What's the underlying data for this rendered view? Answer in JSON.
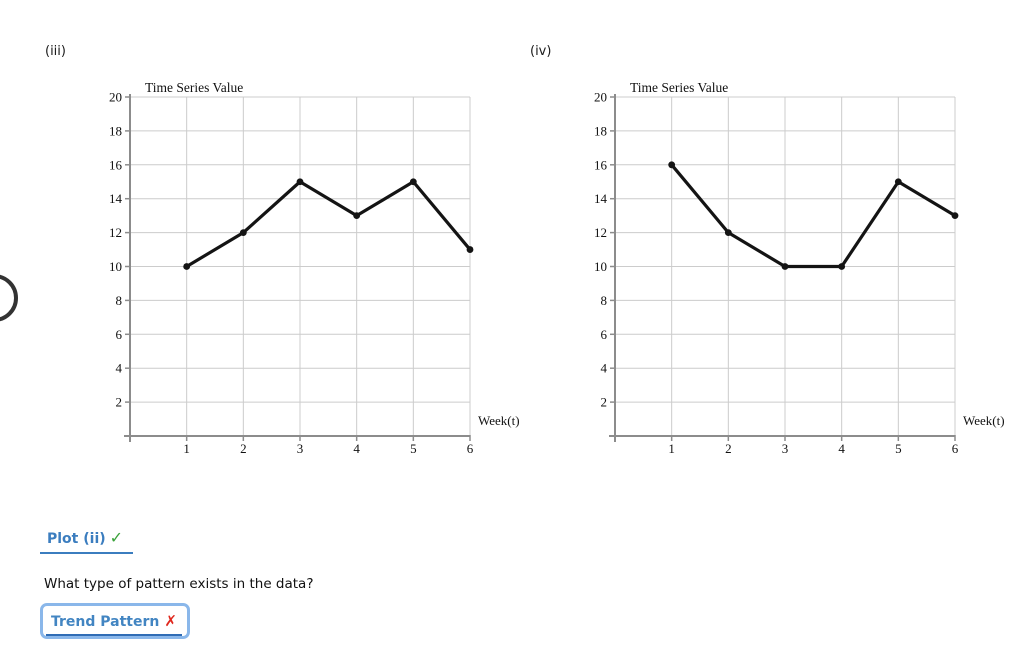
{
  "figures": [
    {
      "label": "(iii)"
    },
    {
      "label": "(iv)"
    }
  ],
  "chart_data": [
    {
      "type": "line",
      "title": "Time Series Value",
      "xlabel": "Week(t)",
      "x": [
        1,
        2,
        3,
        4,
        5,
        6
      ],
      "values": [
        10,
        12,
        15,
        13,
        15,
        11
      ],
      "ylim": [
        0,
        20
      ],
      "xlim": [
        0,
        6
      ],
      "yticks": [
        2,
        4,
        6,
        8,
        10,
        12,
        14,
        16,
        18,
        20
      ],
      "xticks": [
        1,
        2,
        3,
        4,
        5,
        6
      ],
      "grid": true,
      "legend": "none",
      "line_color": "#141414",
      "marker": "circle"
    },
    {
      "type": "line",
      "title": "Time Series Value",
      "xlabel": "Week(t)",
      "x": [
        1,
        2,
        3,
        4,
        5,
        6
      ],
      "values": [
        16,
        12,
        10,
        10,
        15,
        13
      ],
      "ylim": [
        0,
        20
      ],
      "xlim": [
        0,
        6
      ],
      "yticks": [
        2,
        4,
        6,
        8,
        10,
        12,
        14,
        16,
        18,
        20
      ],
      "xticks": [
        1,
        2,
        3,
        4,
        5,
        6
      ],
      "grid": true,
      "legend": "none",
      "line_color": "#141414",
      "marker": "circle"
    }
  ],
  "footer": {
    "plot_link": {
      "label": "Plot (ii)",
      "status_icon": "✓"
    },
    "question": "What type of pattern exists in the data?",
    "answer_dropdown": {
      "label": "Trend Pattern",
      "status_icon": "✗"
    }
  },
  "colors": {
    "grid": "#cccccc",
    "axis": "#8c8c8c",
    "chart_text": "#111111",
    "line": "#141414",
    "link_blue": "#3b7dbf",
    "dropdown_text_blue": "#4285c2",
    "dropdown_border_blue": "#8ab7ea",
    "underline_blue": "#2f6cb5",
    "check_green": "#3aa23a",
    "x_red": "#e0281e",
    "arc_gray": "#333333"
  }
}
